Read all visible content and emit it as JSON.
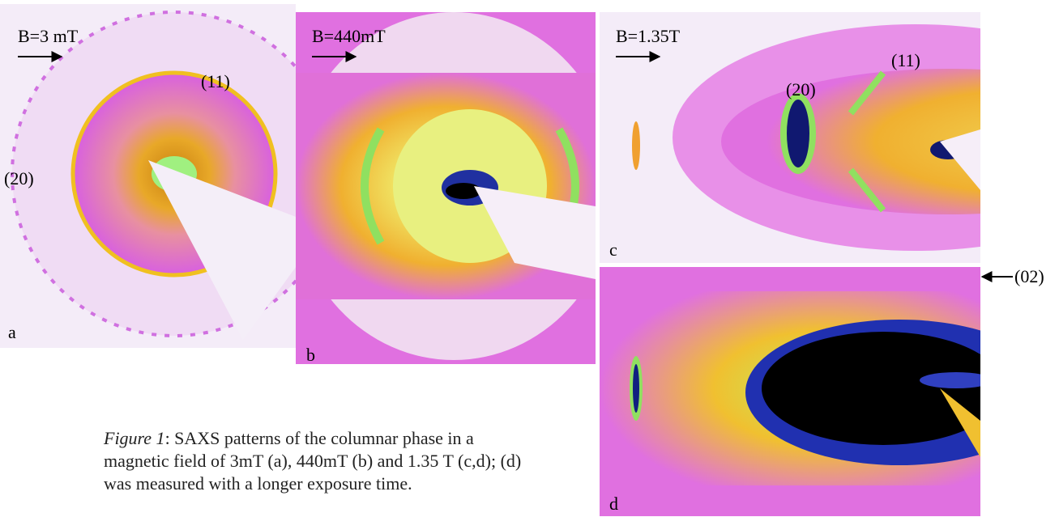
{
  "panels": [
    {
      "letter": "a",
      "field": "B=3 mT",
      "peaks": [
        "(11)",
        "(20)"
      ]
    },
    {
      "letter": "b",
      "field": "B=440mT"
    },
    {
      "letter": "c",
      "field": "B=1.35T",
      "peaks": [
        "(11)",
        "(20)"
      ]
    },
    {
      "letter": "d",
      "side_label": "(02)"
    }
  ],
  "caption": {
    "lead": "Figure 1",
    "text": ": SAXS patterns of the columnar phase in a magnetic field of 3mT (a), 440mT (b) and 1.35 T (c,d); (d) was measured with a longer exposure time."
  }
}
